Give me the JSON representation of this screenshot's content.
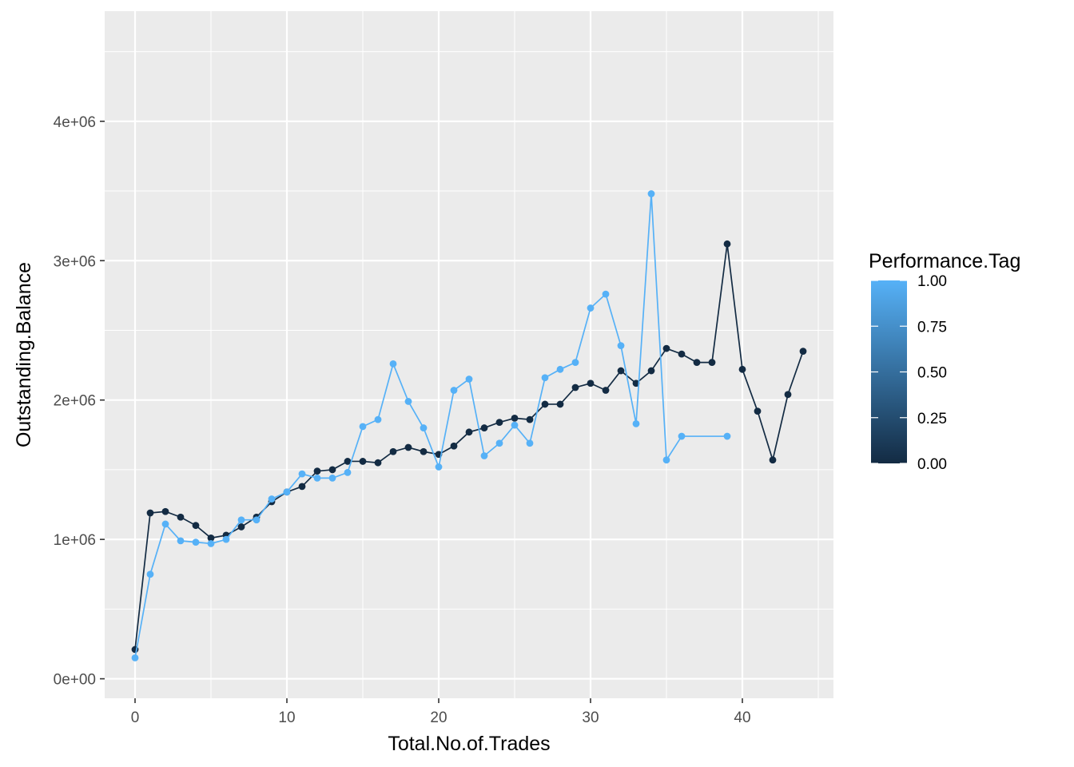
{
  "chart_data": {
    "type": "line",
    "xlabel": "Total.No.of.Trades",
    "ylabel": "Outstanding.Balance",
    "xlim": [
      -2,
      46
    ],
    "ylim": [
      -140000,
      4790000
    ],
    "x_ticks": [
      0,
      10,
      20,
      30,
      40
    ],
    "x_tick_labels": [
      "0",
      "10",
      "20",
      "30",
      "40"
    ],
    "y_ticks": [
      0,
      1000000,
      2000000,
      3000000,
      4000000
    ],
    "y_tick_labels": [
      "0e+00",
      "1e+06",
      "2e+06",
      "3e+06",
      "4e+06"
    ],
    "grid": true,
    "legend": {
      "title": "Performance.Tag",
      "type": "colorbar",
      "placement": "right",
      "labels": [
        "1.00",
        "0.75",
        "0.50",
        "0.25",
        "0.00"
      ],
      "low_color": "#132b43",
      "high_color": "#56b1f7"
    },
    "series": [
      {
        "tag": 0,
        "color": "#132b43",
        "x": [
          0,
          1,
          2,
          3,
          4,
          5,
          6,
          7,
          8,
          9,
          10,
          11,
          12,
          13,
          14,
          15,
          16,
          17,
          18,
          19,
          20,
          21,
          22,
          23,
          24,
          25,
          26,
          27,
          28,
          29,
          30,
          31,
          32,
          33,
          34,
          35,
          36,
          37,
          38,
          39,
          40,
          41,
          42,
          43,
          44
        ],
        "y": [
          210000,
          1190000,
          1200000,
          1160000,
          1100000,
          1010000,
          1030000,
          1090000,
          1160000,
          1270000,
          1340000,
          1380000,
          1490000,
          1500000,
          1560000,
          1560000,
          1550000,
          1630000,
          1660000,
          1630000,
          1610000,
          1670000,
          1770000,
          1800000,
          1840000,
          1870000,
          1860000,
          1970000,
          1970000,
          2090000,
          2120000,
          2070000,
          2210000,
          2120000,
          2210000,
          2370000,
          2330000,
          2270000,
          2270000,
          3120000,
          2220000,
          1920000,
          1570000,
          2040000,
          2350000
        ]
      },
      {
        "tag": 1,
        "color": "#56b1f7",
        "x": [
          0,
          1,
          2,
          3,
          4,
          5,
          6,
          7,
          8,
          9,
          10,
          11,
          12,
          13,
          14,
          15,
          16,
          17,
          18,
          19,
          20,
          21,
          22,
          23,
          24,
          25,
          26,
          27,
          28,
          29,
          30,
          31,
          32,
          33,
          34,
          35,
          36,
          39
        ],
        "y": [
          150000,
          750000,
          1110000,
          990000,
          980000,
          970000,
          1000000,
          1140000,
          1140000,
          1290000,
          1340000,
          1470000,
          1440000,
          1440000,
          1480000,
          1810000,
          1860000,
          2260000,
          1990000,
          1800000,
          1520000,
          2070000,
          2150000,
          1600000,
          1690000,
          1820000,
          1690000,
          2160000,
          2220000,
          2270000,
          2660000,
          2760000,
          2390000,
          1830000,
          3480000,
          1570000,
          1740000,
          1740000
        ]
      }
    ]
  }
}
